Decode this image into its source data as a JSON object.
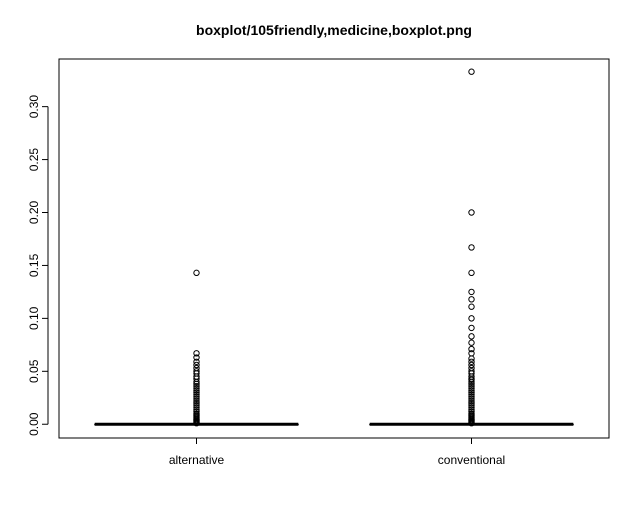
{
  "chart_data": {
    "type": "boxplot",
    "title": "boxplot/105friendly,medicine,boxplot.png",
    "xlabel": "",
    "ylabel": "",
    "categories": [
      "alternative",
      "conventional"
    ],
    "ylim": [
      -0.013,
      0.345
    ],
    "y_ticks": [
      0.0,
      0.05,
      0.1,
      0.15,
      0.2,
      0.25,
      0.3
    ],
    "y_tick_labels": [
      "0.00",
      "0.05",
      "0.10",
      "0.15",
      "0.20",
      "0.25",
      "0.30"
    ],
    "grid": false,
    "boxes": [
      {
        "name": "alternative",
        "min": 0.0,
        "q1": 0.0,
        "median": 0.0,
        "q3": 0.0,
        "max": 0.0,
        "outliers": [
          0.143,
          0.067,
          0.063,
          0.059,
          0.056,
          0.053,
          0.05,
          0.048,
          0.045,
          0.043,
          0.04,
          0.038,
          0.036,
          0.034,
          0.032,
          0.03,
          0.028,
          0.026,
          0.024,
          0.022,
          0.02,
          0.018,
          0.016,
          0.014,
          0.012,
          0.01,
          0.009,
          0.008,
          0.007,
          0.006,
          0.005,
          0.004,
          0.003,
          0.002,
          0.001
        ]
      },
      {
        "name": "conventional",
        "min": 0.0,
        "q1": 0.0,
        "median": 0.0,
        "q3": 0.0,
        "max": 0.0,
        "outliers": [
          0.333,
          0.2,
          0.167,
          0.143,
          0.125,
          0.118,
          0.111,
          0.1,
          0.091,
          0.083,
          0.077,
          0.071,
          0.067,
          0.062,
          0.059,
          0.056,
          0.053,
          0.05,
          0.048,
          0.045,
          0.043,
          0.042,
          0.04,
          0.038,
          0.036,
          0.034,
          0.032,
          0.03,
          0.028,
          0.026,
          0.024,
          0.022,
          0.02,
          0.018,
          0.016,
          0.014,
          0.012,
          0.01,
          0.009,
          0.008,
          0.007,
          0.006,
          0.005,
          0.004,
          0.003,
          0.002,
          0.001
        ]
      }
    ]
  }
}
